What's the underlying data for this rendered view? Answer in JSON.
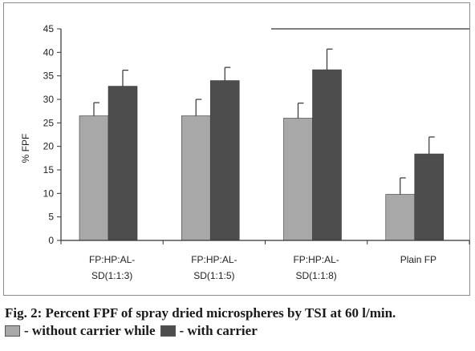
{
  "chart_data": {
    "type": "bar",
    "categories": [
      [
        "FP:HP:AL-",
        "SD(1:1:3)"
      ],
      [
        "FP:HP:AL-",
        "SD(1:1:5)"
      ],
      [
        "FP:HP:AL-",
        "SD(1:1:8)"
      ],
      [
        "Plain FP"
      ]
    ],
    "series": [
      {
        "name": "- without carrier while",
        "values": [
          26.5,
          26.5,
          26.0,
          9.8
        ],
        "errors": [
          2.8,
          3.5,
          3.2,
          3.5
        ],
        "color": "#a8a8a8"
      },
      {
        "name": "- with carrier",
        "values": [
          32.8,
          34.0,
          36.3,
          18.4
        ],
        "errors": [
          3.4,
          2.8,
          4.4,
          3.6
        ],
        "color": "#4d4d4d"
      }
    ],
    "ylabel": "% FPF",
    "xlabel": "",
    "ylim": [
      0,
      45
    ],
    "yticks": [
      0,
      5,
      10,
      15,
      20,
      25,
      30,
      35,
      40,
      45
    ],
    "gridlines": [
      45
    ],
    "grid": false,
    "legend_placement": "caption-below"
  },
  "caption": {
    "title": "Fig. 2: Percent FPF of spray dried microspheres by TSI at 60 l/min.",
    "legend_items": [
      "- without carrier while",
      "- with carrier"
    ],
    "legend_colors": [
      "#a8a8a8",
      "#4d4d4d"
    ]
  }
}
